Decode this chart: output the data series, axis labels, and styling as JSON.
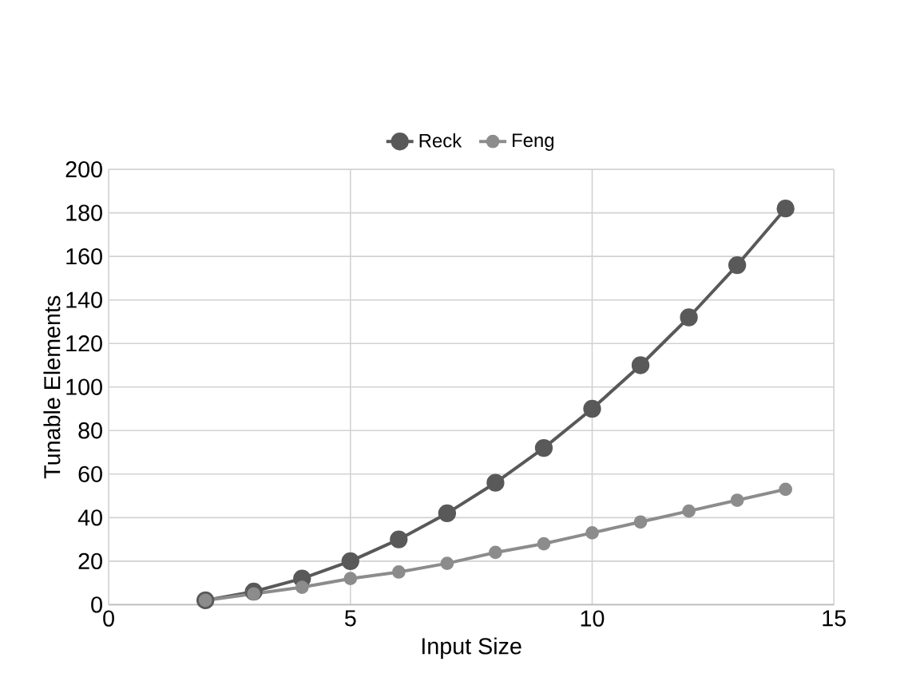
{
  "chart_data": {
    "type": "line",
    "xlabel": "Input Size",
    "ylabel": "Tunable Elements",
    "xlim": [
      0,
      15
    ],
    "xticks": [
      0,
      5,
      10,
      15
    ],
    "ylim": [
      0,
      200
    ],
    "yticks": [
      0,
      20,
      40,
      60,
      80,
      100,
      120,
      140,
      160,
      180,
      200
    ],
    "grid": true,
    "legend": "top",
    "marker": "circle",
    "line_style": "solid",
    "series": [
      {
        "name": "Reck",
        "color": "#595959",
        "x": [
          2,
          3,
          4,
          5,
          6,
          7,
          8,
          9,
          10,
          11,
          12,
          13,
          14
        ],
        "values": [
          2,
          6,
          12,
          20,
          30,
          42,
          56,
          72,
          90,
          110,
          132,
          156,
          182
        ]
      },
      {
        "name": "Feng",
        "color": "#8c8c8c",
        "x": [
          2,
          3,
          4,
          5,
          6,
          7,
          8,
          9,
          10,
          11,
          12,
          13,
          14
        ],
        "values": [
          2,
          5,
          8,
          12,
          15,
          19,
          24,
          28,
          33,
          38,
          43,
          48,
          53
        ]
      }
    ]
  }
}
